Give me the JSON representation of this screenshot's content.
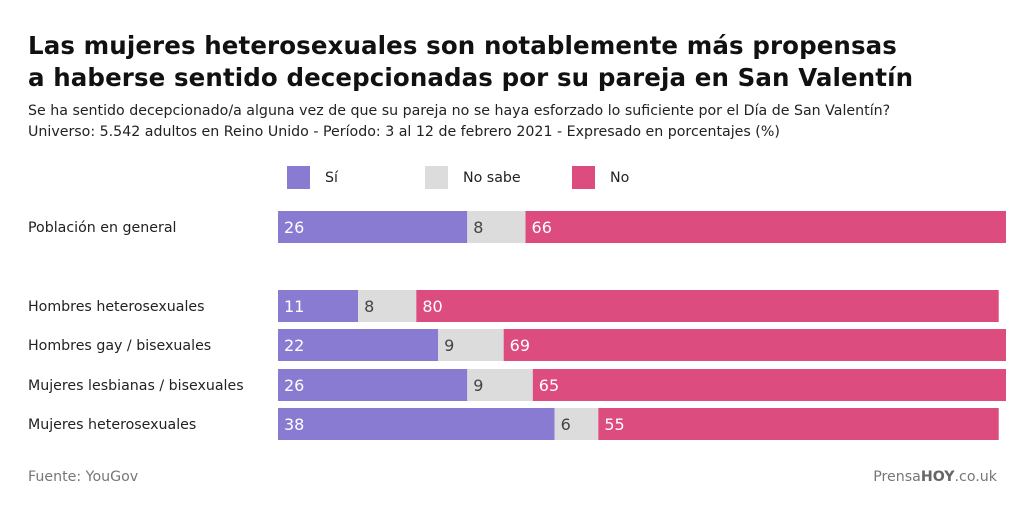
{
  "chart_data": {
    "type": "bar",
    "orientation": "horizontal",
    "stacked": true,
    "title": "Las mujeres heterosexuales son notablemente más propensas a haberse sentido decepcionadas por su pareja en San Valentín",
    "title_lines": [
      "Las mujeres heterosexuales son notablemente más propensas",
      "a haberse sentido decepcionadas por su pareja en San Valentín"
    ],
    "subtitle_lines": [
      "Se ha sentido decepcionado/a alguna vez de que su pareja no se haya esforzado lo suficiente por el Día de San Valentín?",
      "Universo: 5.542 adultos en Reino Unido - Período: 3 al 12 de febrero 2021 - Expresado en porcentajes (%)"
    ],
    "xlabel": "",
    "ylabel": "",
    "xlim": [
      0,
      100
    ],
    "grid": false,
    "legend_position": "top",
    "categories": [
      "Población en general",
      "Hombres heterosexuales",
      "Hombres gay / bisexuales",
      "Mujeres lesbianas / bisexuales",
      "Mujeres heterosexuales"
    ],
    "gap_after_first_category": true,
    "series": [
      {
        "name": "Sí",
        "color": "#8a7bd2",
        "label_color": "#ffffff",
        "values": [
          26,
          11,
          22,
          26,
          38
        ]
      },
      {
        "name": "No sabe",
        "color": "#dcdcdc",
        "label_color": "#444444",
        "values": [
          8,
          8,
          9,
          9,
          6
        ]
      },
      {
        "name": "No",
        "color": "#dc4c7e",
        "label_color": "#ffffff",
        "values": [
          66,
          80,
          69,
          65,
          55
        ]
      }
    ]
  },
  "footer": {
    "source": "Fuente: YouGov",
    "brand_prefix": "Prensa",
    "brand_bold": "HOY",
    "brand_suffix": ".co.uk"
  }
}
